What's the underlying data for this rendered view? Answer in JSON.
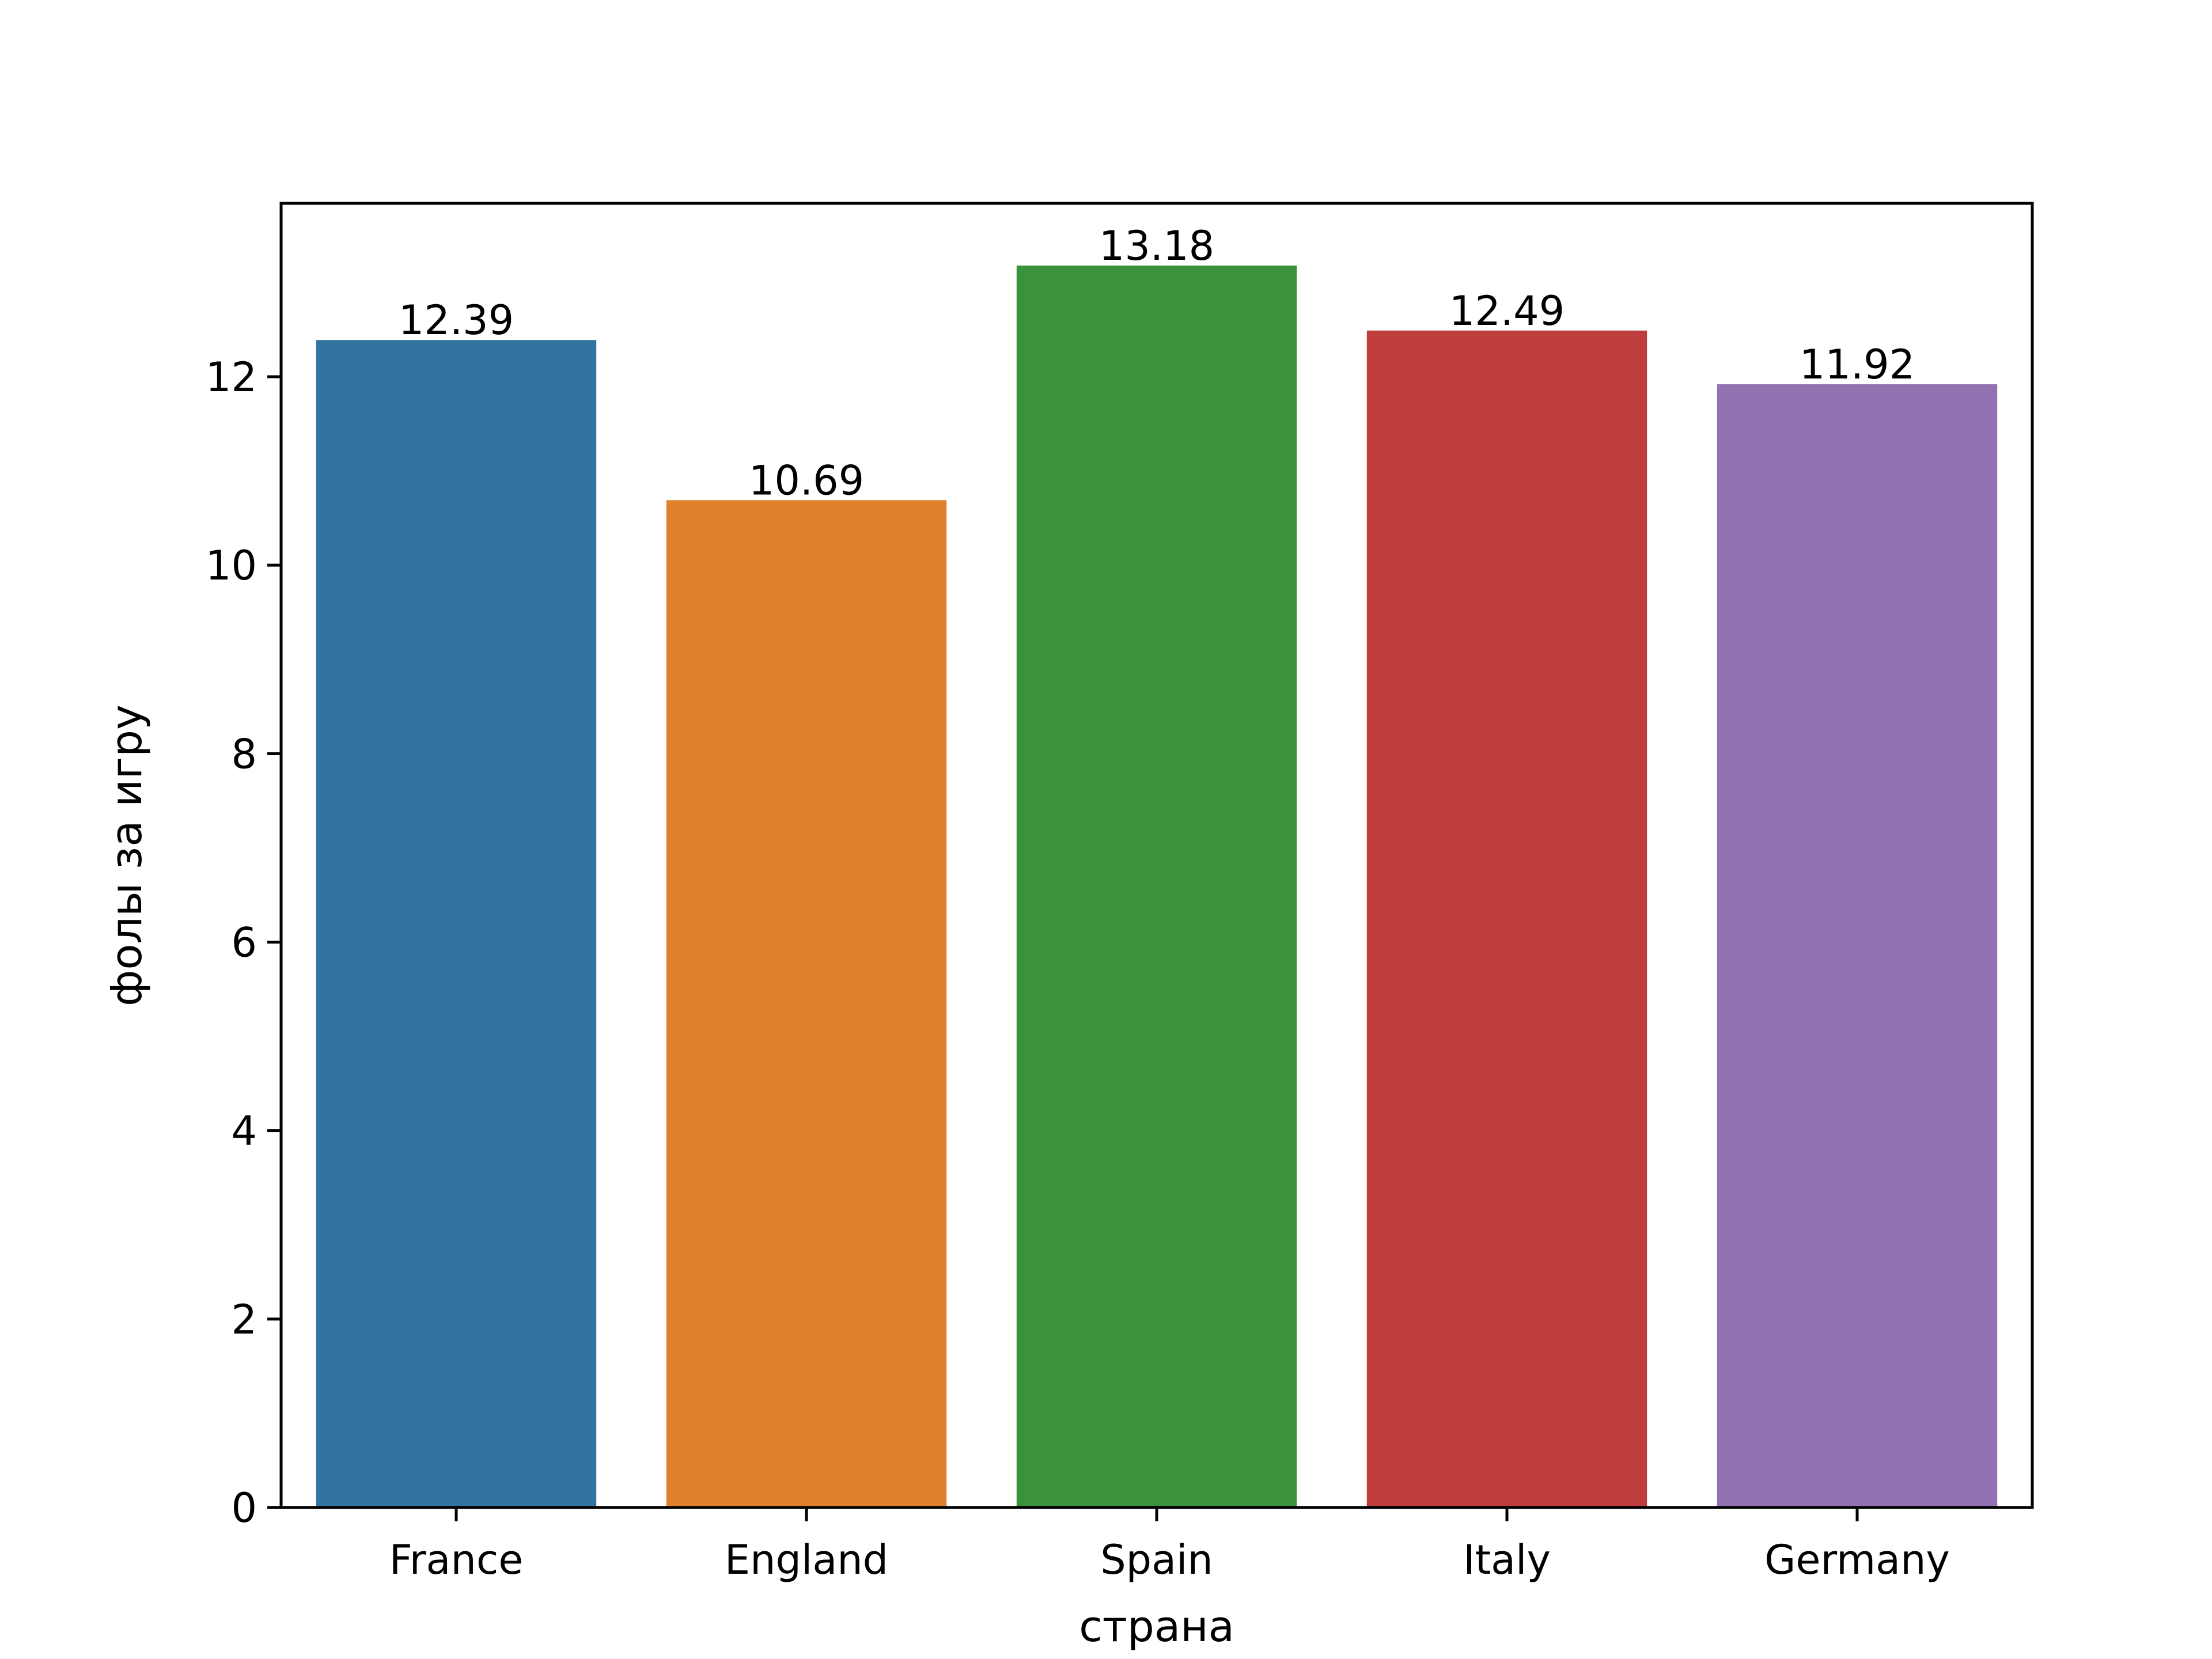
{
  "chart_data": {
    "type": "bar",
    "title": "",
    "xlabel": "страна",
    "ylabel": "фолы за игру",
    "categories": [
      "France",
      "England",
      "Spain",
      "Italy",
      "Germany"
    ],
    "values": [
      12.39,
      10.69,
      13.18,
      12.49,
      11.92
    ],
    "data_labels": [
      "12.39",
      "10.69",
      "13.18",
      "12.49",
      "11.92"
    ],
    "colors": [
      "#3274a1",
      "#e1812c",
      "#3a923a",
      "#c03d3e",
      "#9372b2"
    ],
    "ylim": [
      0,
      13.84
    ],
    "yticks": [
      0,
      2,
      4,
      6,
      8,
      10,
      12
    ],
    "grid": false,
    "legend": "none"
  }
}
